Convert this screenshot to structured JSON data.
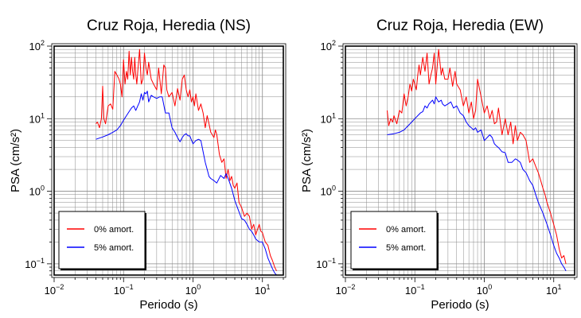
{
  "chart_data": [
    {
      "type": "line",
      "title": "Cruz Roja, Heredia (NS)",
      "xlabel": "Periodo (s)",
      "ylabel": "PSA (cm/s²)",
      "xscale": "log",
      "yscale": "log",
      "xlim": [
        0.01,
        20
      ],
      "ylim": [
        0.07,
        100
      ],
      "grid": true,
      "legend_position": "bottom-left",
      "x_tick_labels": [
        {
          "value": 0.01,
          "base": "10",
          "exp": "−2"
        },
        {
          "value": 0.1,
          "base": "10",
          "exp": "−1"
        },
        {
          "value": 1,
          "base": "10",
          "exp": "0"
        },
        {
          "value": 10,
          "base": "10",
          "exp": "1"
        }
      ],
      "y_tick_labels": [
        {
          "value": 0.1,
          "base": "10",
          "exp": "−1"
        },
        {
          "value": 1,
          "base": "10",
          "exp": "0"
        },
        {
          "value": 10,
          "base": "10",
          "exp": "1"
        },
        {
          "value": 100,
          "base": "10",
          "exp": "2"
        }
      ],
      "series": [
        {
          "name": "0% amort.",
          "color": "#ff0000",
          "x": [
            0.04,
            0.042,
            0.045,
            0.048,
            0.05,
            0.052,
            0.055,
            0.06,
            0.065,
            0.07,
            0.075,
            0.08,
            0.085,
            0.09,
            0.095,
            0.1,
            0.105,
            0.11,
            0.115,
            0.12,
            0.125,
            0.13,
            0.135,
            0.14,
            0.145,
            0.15,
            0.155,
            0.16,
            0.17,
            0.18,
            0.19,
            0.2,
            0.21,
            0.22,
            0.23,
            0.25,
            0.27,
            0.3,
            0.32,
            0.35,
            0.38,
            0.4,
            0.42,
            0.45,
            0.5,
            0.55,
            0.6,
            0.65,
            0.7,
            0.75,
            0.8,
            0.85,
            0.9,
            0.95,
            1.0,
            1.05,
            1.1,
            1.2,
            1.3,
            1.4,
            1.5,
            1.6,
            1.7,
            1.8,
            1.9,
            2.0,
            2.1,
            2.2,
            2.4,
            2.6,
            2.8,
            3.0,
            3.2,
            3.4,
            3.6,
            3.8,
            4.0,
            4.3,
            4.6,
            5.0,
            5.5,
            6.0,
            6.5,
            7.0,
            7.5,
            8.0,
            8.5,
            9.0,
            9.5,
            10.0,
            11.0,
            12.0,
            13.0,
            14.0,
            15.0,
            16.0
          ],
          "values": [
            8.5,
            9.0,
            7.5,
            10.0,
            28.0,
            10.0,
            8.5,
            15.0,
            16.0,
            13.5,
            45.0,
            40.0,
            36.0,
            30.0,
            20.0,
            65.0,
            30.0,
            45.0,
            35.0,
            85.0,
            40.0,
            70.0,
            45.0,
            35.0,
            70.0,
            40.0,
            30.0,
            45.0,
            90.0,
            30.0,
            35.0,
            80.0,
            50.0,
            40.0,
            60.0,
            35.0,
            30.0,
            25.0,
            50.0,
            22.0,
            55.0,
            50.0,
            25.0,
            20.0,
            23.0,
            15.0,
            26.0,
            18.0,
            35.0,
            40.0,
            25.0,
            20.0,
            25.0,
            17.0,
            20.0,
            15.0,
            22.0,
            13.0,
            16.0,
            12.0,
            7.5,
            11.0,
            8.5,
            6.5,
            6.0,
            5.5,
            7.0,
            6.0,
            3.2,
            2.5,
            2.8,
            1.5,
            2.0,
            1.4,
            1.6,
            1.2,
            1.1,
            1.3,
            0.7,
            0.6,
            0.45,
            0.5,
            0.45,
            0.3,
            0.35,
            0.25,
            0.3,
            0.35,
            0.28,
            0.27,
            0.2,
            0.18,
            0.13,
            0.11,
            0.09,
            0.08
          ]
        },
        {
          "name": "5% amort.",
          "color": "#0000ff",
          "x": [
            0.04,
            0.05,
            0.06,
            0.07,
            0.08,
            0.09,
            0.1,
            0.11,
            0.12,
            0.13,
            0.14,
            0.15,
            0.16,
            0.17,
            0.18,
            0.19,
            0.2,
            0.21,
            0.22,
            0.23,
            0.25,
            0.27,
            0.3,
            0.33,
            0.36,
            0.4,
            0.45,
            0.5,
            0.55,
            0.6,
            0.65,
            0.7,
            0.75,
            0.8,
            0.85,
            0.9,
            1.0,
            1.1,
            1.2,
            1.3,
            1.4,
            1.5,
            1.6,
            1.7,
            1.8,
            2.0,
            2.2,
            2.5,
            2.8,
            3.0,
            3.3,
            3.6,
            4.0,
            4.5,
            5.0,
            5.5,
            6.0,
            6.5,
            7.0,
            7.5,
            8.0,
            9.0,
            10.0,
            11.0,
            12.0,
            13.0,
            14.0,
            15.0,
            16.0
          ],
          "values": [
            5.2,
            5.6,
            6.0,
            6.5,
            7.0,
            8.0,
            9.5,
            11.0,
            12.5,
            14.0,
            15.0,
            13.0,
            15.0,
            17.0,
            22.0,
            18.0,
            23.0,
            22.0,
            24.0,
            17.0,
            21.0,
            20.0,
            19.0,
            20.0,
            20.0,
            12.0,
            12.0,
            7.5,
            6.5,
            5.5,
            4.8,
            5.5,
            6.0,
            6.2,
            5.8,
            5.8,
            4.5,
            5.0,
            5.2,
            5.0,
            3.5,
            2.5,
            2.0,
            1.6,
            1.5,
            1.4,
            1.3,
            1.65,
            1.5,
            1.75,
            1.4,
            1.1,
            0.75,
            0.55,
            0.42,
            0.4,
            0.35,
            0.3,
            0.28,
            0.25,
            0.22,
            0.2,
            0.2,
            0.16,
            0.12,
            0.1,
            0.085,
            0.075,
            0.07
          ]
        }
      ]
    },
    {
      "type": "line",
      "title": "Cruz Roja, Heredia (EW)",
      "xlabel": "Periodo (s)",
      "ylabel": "PSA (cm/s²)",
      "xscale": "log",
      "yscale": "log",
      "xlim": [
        0.01,
        20
      ],
      "ylim": [
        0.07,
        100
      ],
      "grid": true,
      "legend_position": "bottom-left",
      "x_tick_labels": [
        {
          "value": 0.01,
          "base": "10",
          "exp": "−2"
        },
        {
          "value": 0.1,
          "base": "10",
          "exp": "−1"
        },
        {
          "value": 1,
          "base": "10",
          "exp": "0"
        },
        {
          "value": 10,
          "base": "10",
          "exp": "1"
        }
      ],
      "y_tick_labels": [
        {
          "value": 0.1,
          "base": "10",
          "exp": "−1"
        },
        {
          "value": 1,
          "base": "10",
          "exp": "0"
        },
        {
          "value": 10,
          "base": "10",
          "exp": "1"
        },
        {
          "value": 100,
          "base": "10",
          "exp": "2"
        }
      ],
      "series": [
        {
          "name": "0% amort.",
          "color": "#ff0000",
          "x": [
            0.04,
            0.042,
            0.045,
            0.048,
            0.05,
            0.055,
            0.06,
            0.065,
            0.07,
            0.075,
            0.08,
            0.085,
            0.09,
            0.095,
            0.1,
            0.105,
            0.11,
            0.115,
            0.12,
            0.13,
            0.14,
            0.15,
            0.16,
            0.17,
            0.18,
            0.19,
            0.2,
            0.22,
            0.24,
            0.25,
            0.27,
            0.3,
            0.32,
            0.35,
            0.38,
            0.4,
            0.45,
            0.5,
            0.55,
            0.6,
            0.65,
            0.7,
            0.75,
            0.8,
            0.9,
            1.0,
            1.1,
            1.2,
            1.3,
            1.4,
            1.5,
            1.6,
            1.8,
            2.0,
            2.2,
            2.4,
            2.6,
            2.8,
            3.0,
            3.3,
            3.6,
            4.0,
            4.5,
            5.0,
            5.5,
            6.0,
            6.5,
            7.0,
            7.5,
            8.0,
            9.0,
            10.0,
            11.0,
            12.0,
            13.0,
            14.0,
            15.0
          ],
          "values": [
            13.0,
            8.0,
            10.0,
            9.0,
            11.0,
            8.5,
            13.0,
            12.0,
            22.0,
            15.0,
            20.0,
            30.0,
            24.0,
            35.0,
            30.0,
            25.0,
            40.0,
            55.0,
            40.0,
            70.0,
            45.0,
            80.0,
            30.0,
            40.0,
            50.0,
            80.0,
            30.0,
            90.0,
            40.0,
            50.0,
            35.0,
            35.0,
            50.0,
            28.0,
            45.0,
            30.0,
            25.0,
            15.0,
            20.0,
            12.0,
            17.0,
            10.0,
            13.0,
            35.0,
            20.0,
            12.0,
            15.0,
            10.0,
            13.0,
            8.5,
            9.0,
            14.0,
            6.0,
            10.0,
            6.0,
            9.0,
            4.5,
            8.0,
            5.0,
            6.5,
            6.0,
            5.0,
            2.5,
            2.8,
            2.2,
            1.8,
            1.4,
            1.1,
            0.9,
            0.7,
            0.5,
            0.35,
            0.25,
            0.16,
            0.12,
            0.13,
            0.1
          ]
        },
        {
          "name": "5% amort.",
          "color": "#0000ff",
          "x": [
            0.04,
            0.05,
            0.06,
            0.07,
            0.08,
            0.09,
            0.1,
            0.11,
            0.12,
            0.13,
            0.14,
            0.15,
            0.16,
            0.17,
            0.18,
            0.19,
            0.2,
            0.22,
            0.24,
            0.25,
            0.27,
            0.3,
            0.33,
            0.36,
            0.4,
            0.45,
            0.5,
            0.55,
            0.6,
            0.65,
            0.7,
            0.75,
            0.8,
            0.9,
            1.0,
            1.1,
            1.2,
            1.3,
            1.4,
            1.5,
            1.6,
            1.8,
            2.0,
            2.2,
            2.5,
            2.8,
            3.0,
            3.3,
            3.6,
            4.0,
            4.5,
            5.0,
            5.5,
            6.0,
            7.0,
            8.0,
            9.0,
            10.0,
            11.0,
            12.0,
            13.0,
            14.0,
            15.0
          ],
          "values": [
            6.0,
            6.2,
            6.5,
            7.0,
            8.0,
            9.0,
            10.0,
            11.0,
            12.0,
            12.5,
            15.0,
            14.0,
            16.0,
            17.0,
            18.0,
            16.0,
            20.0,
            17.0,
            18.0,
            16.0,
            15.0,
            16.0,
            17.0,
            14.0,
            15.0,
            12.0,
            11.0,
            9.0,
            8.0,
            7.5,
            7.0,
            7.5,
            6.5,
            7.0,
            5.0,
            5.5,
            6.0,
            5.5,
            4.5,
            4.2,
            4.0,
            3.5,
            3.4,
            2.5,
            2.5,
            2.8,
            2.7,
            2.5,
            2.0,
            1.8,
            1.4,
            1.2,
            0.9,
            0.7,
            0.5,
            0.35,
            0.25,
            0.18,
            0.14,
            0.12,
            0.1,
            0.09,
            0.08
          ]
        }
      ]
    }
  ]
}
